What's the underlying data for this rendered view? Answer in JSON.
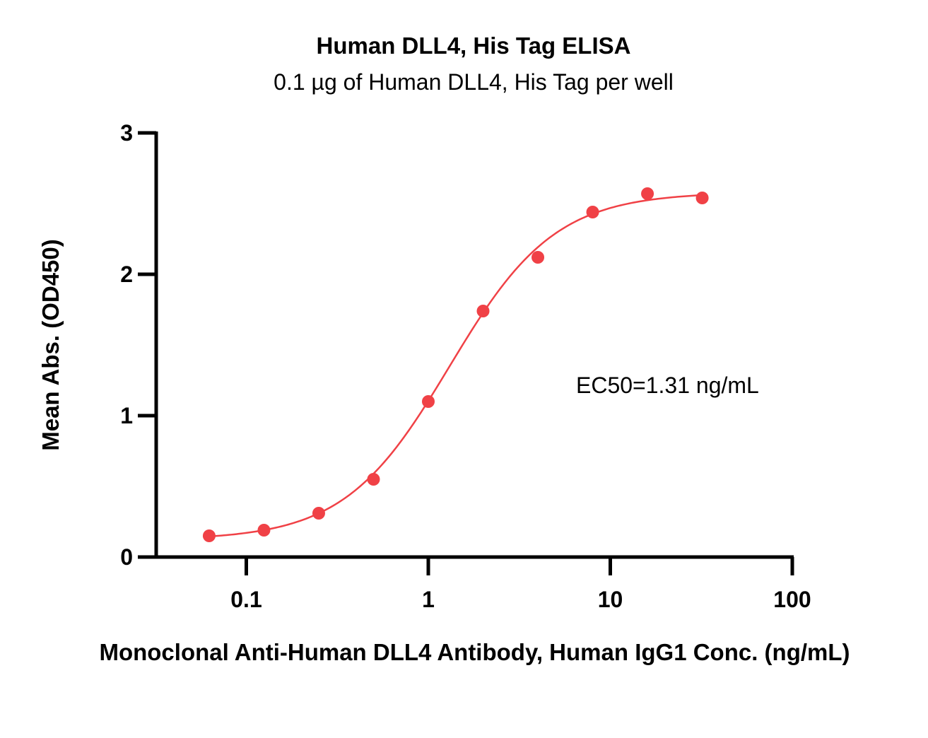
{
  "chart_data": {
    "type": "scatter",
    "title": "Human DLL4, His Tag ELISA",
    "subtitle": "0.1 µg of Human DLL4, His Tag per well",
    "xlabel": "Monoclonal Anti-Human DLL4 Antibody, Human IgG1 Conc. (ng/mL)",
    "ylabel": "Mean Abs. (OD450)",
    "xscale": "log",
    "xlim": [
      0.03,
      100
    ],
    "ylim": [
      0,
      3
    ],
    "xticks": [
      "0.1",
      "1",
      "10",
      "100"
    ],
    "yticks": [
      "0",
      "1",
      "2",
      "3"
    ],
    "annotation": "EC50=1.31 ng/mL",
    "color": "#f04146",
    "series": [
      {
        "x": [
          0.0625,
          0.125,
          0.25,
          0.5,
          1,
          2,
          4,
          8,
          16,
          32
        ],
        "y": [
          0.15,
          0.19,
          0.31,
          0.55,
          1.1,
          1.74,
          2.12,
          2.44,
          2.57,
          2.54
        ],
        "fit": "4-parameter logistic",
        "fit_params": {
          "bottom": 0.12,
          "top": 2.58,
          "ec50": 1.31,
          "hill": 1.5
        }
      }
    ],
    "grid": false,
    "legend": "none"
  }
}
